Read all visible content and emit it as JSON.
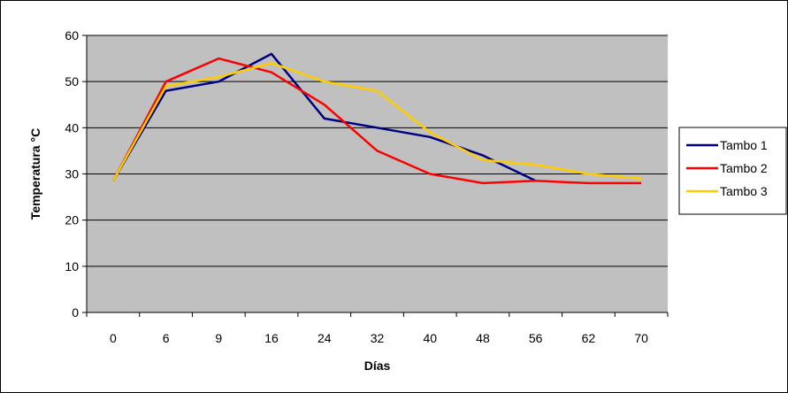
{
  "chart_data": {
    "type": "line",
    "title": "",
    "xlabel": "Días",
    "ylabel": "Temperatura °C",
    "categories": [
      "0",
      "6",
      "9",
      "16",
      "24",
      "32",
      "40",
      "48",
      "56",
      "62",
      "70"
    ],
    "ylim": [
      0,
      60
    ],
    "yticks": [
      "0",
      "10",
      "20",
      "30",
      "40",
      "50",
      "60"
    ],
    "grid": true,
    "plot_background": "#c0c0c0",
    "legend_position": "right",
    "series": [
      {
        "name": "Tambo 1",
        "color": "#000080",
        "values": [
          28.5,
          48,
          50,
          56,
          42,
          40,
          38,
          34,
          28.5,
          null,
          null
        ]
      },
      {
        "name": "Tambo 2",
        "color": "#ff0000",
        "values": [
          28.5,
          50,
          55,
          52,
          45,
          35,
          30,
          28,
          28.5,
          28,
          28
        ]
      },
      {
        "name": "Tambo 3",
        "color": "#ffcc00",
        "values": [
          28.5,
          49,
          51,
          54,
          50,
          48,
          39,
          33,
          32,
          30,
          29
        ]
      }
    ]
  }
}
